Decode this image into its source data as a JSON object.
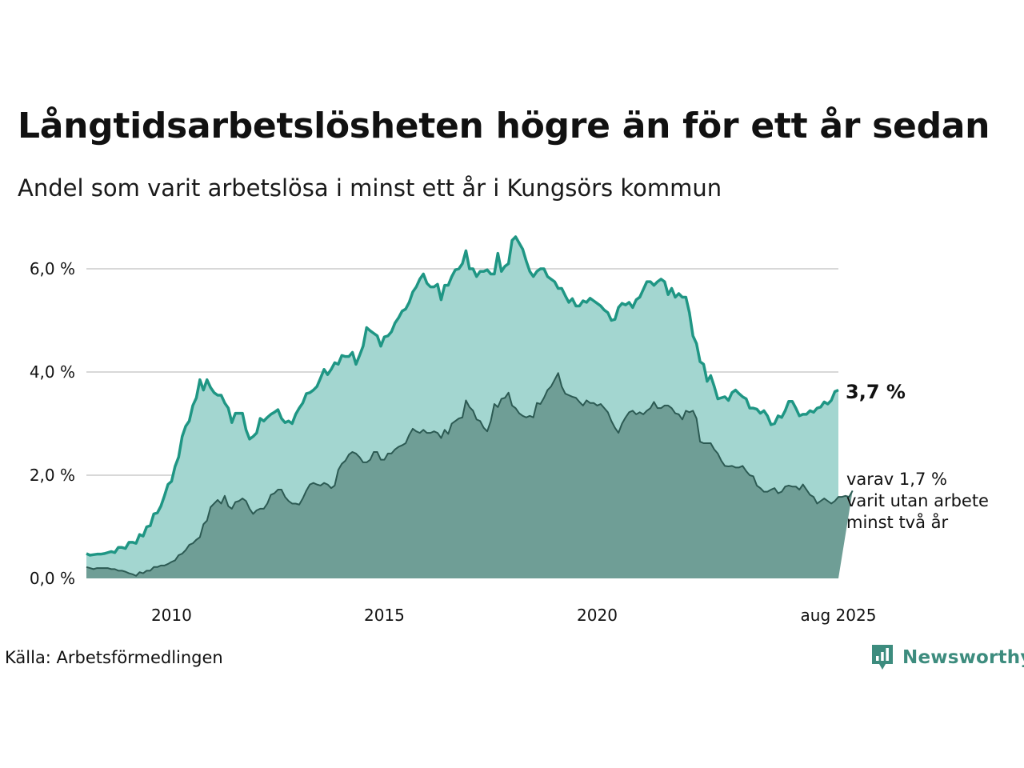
{
  "title": "Långtidsarbetslösheten högre än för ett år sedan",
  "subtitle": "Andel som varit arbetslösa i minst ett år i Kungsörs kommun",
  "source": "Källa: Arbetsförmedlingen",
  "brand": "Newsworthy",
  "colors": {
    "main_line": "#1f9684",
    "main_fill": "#a3d6d0",
    "sub_line": "#2c5a53",
    "sub_fill": "#6f9e96",
    "grid": "#d8d8d8",
    "brand": "#3d8c7e"
  },
  "chart_data": {
    "type": "area",
    "x_start": "2008-01",
    "x_step": "1 month",
    "x_tick_labels": [
      "2010",
      "2015",
      "2020",
      "aug 2025"
    ],
    "y_tick_labels": [
      "0,0 %",
      "2,0 %",
      "4,0 %",
      "6,0 %"
    ],
    "y_ticks": [
      0,
      2,
      4,
      6
    ],
    "ylim": [
      0,
      6.7
    ],
    "grid": true,
    "annotations": {
      "main_end": "3,7 %",
      "sub_end_lines": [
        "varav 1,7 %",
        "varit utan arbete",
        "minst två år"
      ]
    },
    "series": [
      {
        "values": [
          0.48,
          0.45,
          0.46,
          0.47,
          0.47,
          0.48,
          0.5,
          0.52,
          0.5,
          0.6,
          0.6,
          0.58,
          0.7,
          0.7,
          0.68,
          0.85,
          0.82,
          1.0,
          1.02,
          1.25,
          1.27,
          1.4,
          1.6,
          1.82,
          1.88,
          2.17,
          2.35,
          2.75,
          2.95,
          3.05,
          3.35,
          3.5,
          3.85,
          3.65,
          3.85,
          3.7,
          3.6,
          3.55,
          3.55,
          3.4,
          3.3,
          3.02,
          3.2,
          3.2,
          3.2,
          2.88,
          2.7,
          2.75,
          2.82,
          3.1,
          3.05,
          3.12,
          3.18,
          3.22,
          3.27,
          3.1,
          3.02,
          3.05,
          3.0,
          3.18,
          3.3,
          3.4,
          3.58,
          3.6,
          3.65,
          3.72,
          3.88,
          4.05,
          3.95,
          4.05,
          4.18,
          4.15,
          4.32,
          4.3,
          4.3,
          4.38,
          4.15,
          4.32,
          4.5,
          4.86,
          4.8,
          4.75,
          4.7,
          4.5,
          4.68,
          4.7,
          4.78,
          4.95,
          5.05,
          5.18,
          5.22,
          5.35,
          5.55,
          5.65,
          5.8,
          5.9,
          5.72,
          5.65,
          5.65,
          5.7,
          5.4,
          5.68,
          5.68,
          5.85,
          5.98,
          6.0,
          6.1,
          6.35,
          6.0,
          6.0,
          5.85,
          5.95,
          5.95,
          5.98,
          5.9,
          5.9,
          6.3,
          5.95,
          6.05,
          6.1,
          6.55,
          6.62,
          6.5,
          6.38,
          6.15,
          5.95,
          5.85,
          5.95,
          6.0,
          6.0,
          5.85,
          5.8,
          5.75,
          5.62,
          5.62,
          5.48,
          5.35,
          5.42,
          5.28,
          5.28,
          5.38,
          5.35,
          5.43,
          5.38,
          5.33,
          5.28,
          5.2,
          5.15,
          5.0,
          5.02,
          5.25,
          5.33,
          5.3,
          5.35,
          5.25,
          5.4,
          5.45,
          5.6,
          5.75,
          5.75,
          5.68,
          5.75,
          5.8,
          5.75,
          5.5,
          5.62,
          5.45,
          5.52,
          5.45,
          5.45,
          5.15,
          4.7,
          4.55,
          4.2,
          4.15,
          3.82,
          3.93,
          3.72,
          3.48,
          3.5,
          3.52,
          3.45,
          3.6,
          3.65,
          3.58,
          3.52,
          3.48,
          3.3,
          3.3,
          3.28,
          3.2,
          3.25,
          3.15,
          2.98,
          3.0,
          3.15,
          3.12,
          3.25,
          3.43,
          3.43,
          3.3,
          3.15,
          3.18,
          3.18,
          3.25,
          3.22,
          3.3,
          3.32,
          3.42,
          3.38,
          3.45,
          3.62,
          3.65
        ]
      },
      {
        "values": [
          0.22,
          0.2,
          0.18,
          0.2,
          0.2,
          0.2,
          0.2,
          0.18,
          0.18,
          0.15,
          0.15,
          0.13,
          0.1,
          0.08,
          0.05,
          0.12,
          0.1,
          0.15,
          0.15,
          0.22,
          0.22,
          0.25,
          0.25,
          0.28,
          0.32,
          0.35,
          0.45,
          0.48,
          0.55,
          0.65,
          0.68,
          0.75,
          0.8,
          1.05,
          1.12,
          1.38,
          1.45,
          1.52,
          1.45,
          1.6,
          1.4,
          1.35,
          1.48,
          1.5,
          1.55,
          1.5,
          1.35,
          1.25,
          1.32,
          1.35,
          1.35,
          1.45,
          1.62,
          1.65,
          1.72,
          1.72,
          1.58,
          1.5,
          1.45,
          1.45,
          1.43,
          1.55,
          1.7,
          1.82,
          1.85,
          1.82,
          1.8,
          1.85,
          1.82,
          1.75,
          1.8,
          2.1,
          2.22,
          2.28,
          2.4,
          2.45,
          2.42,
          2.35,
          2.25,
          2.25,
          2.3,
          2.45,
          2.45,
          2.3,
          2.3,
          2.42,
          2.42,
          2.5,
          2.55,
          2.58,
          2.62,
          2.78,
          2.9,
          2.85,
          2.82,
          2.88,
          2.82,
          2.82,
          2.85,
          2.82,
          2.72,
          2.88,
          2.8,
          3.0,
          3.05,
          3.1,
          3.12,
          3.45,
          3.32,
          3.25,
          3.08,
          3.05,
          2.92,
          2.85,
          3.05,
          3.38,
          3.32,
          3.48,
          3.5,
          3.6,
          3.35,
          3.3,
          3.2,
          3.15,
          3.12,
          3.15,
          3.12,
          3.4,
          3.38,
          3.5,
          3.65,
          3.72,
          3.85,
          3.98,
          3.72,
          3.58,
          3.55,
          3.52,
          3.5,
          3.42,
          3.35,
          3.45,
          3.4,
          3.4,
          3.35,
          3.38,
          3.3,
          3.22,
          3.05,
          2.92,
          2.82,
          3.0,
          3.12,
          3.22,
          3.25,
          3.18,
          3.22,
          3.18,
          3.25,
          3.3,
          3.42,
          3.3,
          3.3,
          3.35,
          3.35,
          3.3,
          3.2,
          3.18,
          3.08,
          3.25,
          3.22,
          3.25,
          3.1,
          2.65,
          2.62,
          2.62,
          2.62,
          2.5,
          2.42,
          2.28,
          2.18,
          2.17,
          2.18,
          2.15,
          2.15,
          2.18,
          2.08,
          2.0,
          1.98,
          1.8,
          1.75,
          1.68,
          1.68,
          1.72,
          1.75,
          1.65,
          1.68,
          1.78,
          1.8,
          1.78,
          1.78,
          1.72,
          1.82,
          1.72,
          1.62,
          1.58,
          1.45,
          1.5,
          1.55,
          1.5,
          1.45,
          1.5,
          1.58,
          1.58,
          1.6,
          1.58,
          1.7
        ]
      }
    ]
  }
}
